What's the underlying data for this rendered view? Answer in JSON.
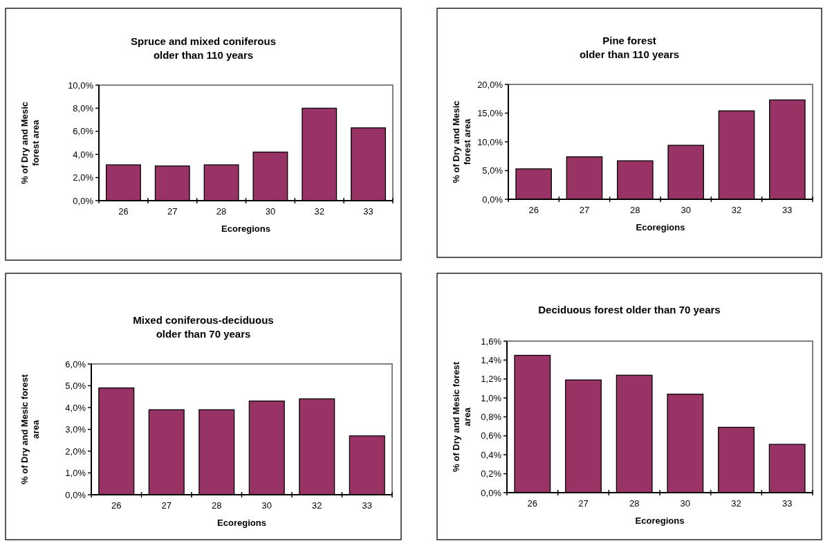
{
  "chart_data": [
    {
      "type": "bar",
      "title": "Spruce and mixed coniferous\nolder than 110 years",
      "xlabel": "Ecoregions",
      "ylabel": "% of Dry and Mesic\nforest area",
      "categories": [
        "26",
        "27",
        "28",
        "30",
        "32",
        "33"
      ],
      "values": [
        3.1,
        3.0,
        3.1,
        4.2,
        8.0,
        6.3
      ],
      "color": "#993366",
      "ylim": [
        0,
        10
      ],
      "yticks": [
        {
          "value": 0,
          "label": "0,0%"
        },
        {
          "value": 2,
          "label": "2,0%"
        },
        {
          "value": 4,
          "label": "4,0%"
        },
        {
          "value": 6,
          "label": "6,0%"
        },
        {
          "value": 8,
          "label": "8,0%"
        },
        {
          "value": 10,
          "label": "10,0%"
        }
      ]
    },
    {
      "type": "bar",
      "title": "Pine forest\nolder than 110 years",
      "xlabel": "Ecoregions",
      "ylabel": "% of Dry and Mesic\nforest area",
      "categories": [
        "26",
        "27",
        "28",
        "30",
        "32",
        "33"
      ],
      "values": [
        5.3,
        7.4,
        6.7,
        9.4,
        15.4,
        17.3
      ],
      "color": "#993366",
      "ylim": [
        0,
        20
      ],
      "yticks": [
        {
          "value": 0,
          "label": "0,0%"
        },
        {
          "value": 5,
          "label": "5,0%"
        },
        {
          "value": 10,
          "label": "10,0%"
        },
        {
          "value": 15,
          "label": "15,0%"
        },
        {
          "value": 20,
          "label": "20,0%"
        }
      ]
    },
    {
      "type": "bar",
      "title": "Mixed coniferous-deciduous\nolder than 70 years",
      "xlabel": "Ecoregions",
      "ylabel": "% of Dry and Mesic forest\narea",
      "categories": [
        "26",
        "27",
        "28",
        "30",
        "32",
        "33"
      ],
      "values": [
        4.9,
        3.9,
        3.9,
        4.3,
        4.4,
        2.7
      ],
      "color": "#993366",
      "ylim": [
        0,
        6
      ],
      "yticks": [
        {
          "value": 0,
          "label": "0,0%"
        },
        {
          "value": 1,
          "label": "1,0%"
        },
        {
          "value": 2,
          "label": "2,0%"
        },
        {
          "value": 3,
          "label": "3,0%"
        },
        {
          "value": 4,
          "label": "4,0%"
        },
        {
          "value": 5,
          "label": "5,0%"
        },
        {
          "value": 6,
          "label": "6,0%"
        }
      ]
    },
    {
      "type": "bar",
      "title": "Deciduous forest older than 70 years",
      "xlabel": "Ecoregions",
      "ylabel": "% of Dry and Mesic forest\narea",
      "categories": [
        "26",
        "27",
        "28",
        "30",
        "32",
        "33"
      ],
      "values": [
        1.45,
        1.19,
        1.24,
        1.04,
        0.69,
        0.51
      ],
      "color": "#993366",
      "ylim": [
        0,
        1.6
      ],
      "yticks": [
        {
          "value": 0,
          "label": "0,0%"
        },
        {
          "value": 0.2,
          "label": "0,2%"
        },
        {
          "value": 0.4,
          "label": "0,4%"
        },
        {
          "value": 0.6,
          "label": "0,6%"
        },
        {
          "value": 0.8,
          "label": "0,8%"
        },
        {
          "value": 1.0,
          "label": "1,0%"
        },
        {
          "value": 1.2,
          "label": "1,2%"
        },
        {
          "value": 1.4,
          "label": "1,4%"
        },
        {
          "value": 1.6,
          "label": "1,6%"
        }
      ]
    }
  ]
}
